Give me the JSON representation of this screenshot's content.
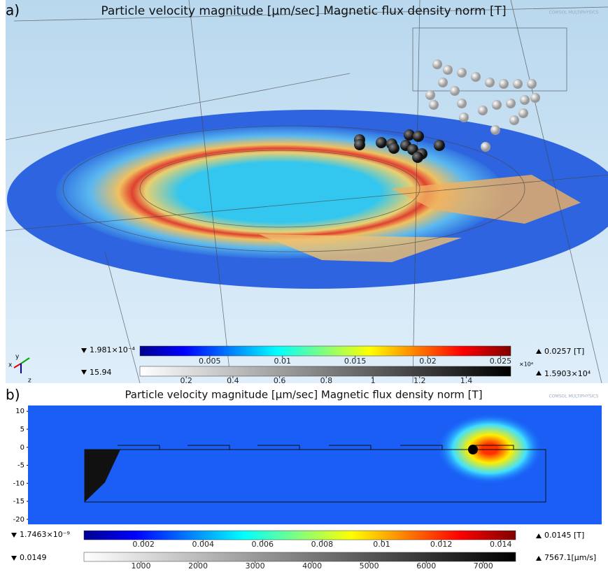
{
  "panels": [
    {
      "label": "a)",
      "title": "Particle velocity magnitude [µm/sec]  Magnetic flux density norm [T]",
      "watermark": "COMSOL MULTIPHYSICS",
      "triad": [
        "y",
        "x",
        "z"
      ],
      "colorbars": [
        {
          "min_label": "1.981×10⁻⁴",
          "max_label": "0.0257 [T]",
          "range": [
            0.0001981,
            0.0257
          ],
          "ticks": [
            0.005,
            0.01,
            0.015,
            0.02,
            0.025
          ],
          "palette": "jet"
        },
        {
          "min_label": "15.94",
          "max_label": "1.5903×10⁴",
          "range": [
            15.94,
            15903
          ],
          "exponent": "×10⁴",
          "ticks": [
            {
              "value": 2000,
              "label": "0.2"
            },
            {
              "value": 4000,
              "label": "0.4"
            },
            {
              "value": 6000,
              "label": "0.6"
            },
            {
              "value": 8000,
              "label": "0.8"
            },
            {
              "value": 10000,
              "label": "1"
            },
            {
              "value": 12000,
              "label": "1.2"
            },
            {
              "value": 14000,
              "label": "1.4"
            }
          ],
          "palette": "gray"
        }
      ]
    },
    {
      "label": "b)",
      "title": "Particle velocity magnitude [µm/sec]  Magnetic flux density norm [T]",
      "watermark": "COMSOL MULTIPHYSICS",
      "ylim": [
        -21.4,
        11.6
      ],
      "yticks": [
        10,
        5,
        0,
        -5,
        -10,
        -15,
        -20
      ],
      "colorbars": [
        {
          "min_label": "1.7463×10⁻⁹",
          "max_label": "0.0145 [T]",
          "range": [
            1.7463e-09,
            0.0145
          ],
          "ticks": [
            0.002,
            0.004,
            0.006,
            0.008,
            0.01,
            0.012,
            0.014
          ],
          "palette": "jet"
        },
        {
          "min_label": "0.0149",
          "max_label": "7567.1[µm/s]",
          "range": [
            0.0149,
            7567.1
          ],
          "ticks": [
            1000,
            2000,
            3000,
            4000,
            5000,
            6000,
            7000
          ],
          "palette": "gray"
        }
      ]
    }
  ]
}
